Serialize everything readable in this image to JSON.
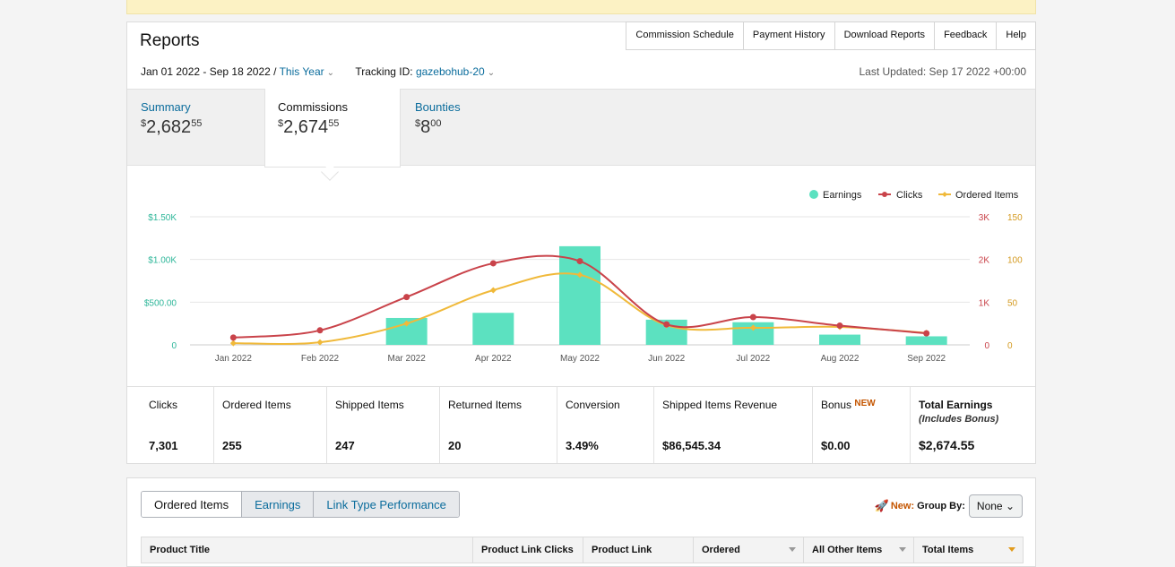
{
  "header": {
    "title": "Reports",
    "nav": [
      "Commission Schedule",
      "Payment History",
      "Download Reports",
      "Feedback",
      "Help"
    ],
    "date_range": "Jan 01 2022 - Sep 18 2022 /",
    "date_preset": "This Year",
    "tracking_label": "Tracking ID:",
    "tracking_id": "gazebohub-20",
    "last_updated": "Last Updated: Sep 17 2022 +00:00"
  },
  "summary_tabs": [
    {
      "label": "Summary",
      "currency": "$",
      "whole": "2,682",
      "cents": "55"
    },
    {
      "label": "Commissions",
      "currency": "$",
      "whole": "2,674",
      "cents": "55"
    },
    {
      "label": "Bounties",
      "currency": "$",
      "whole": "8",
      "cents": "00"
    }
  ],
  "chart_data": {
    "type": "bar+line",
    "categories": [
      "Jan 2022",
      "Feb 2022",
      "Mar 2022",
      "Apr 2022",
      "May 2022",
      "Jun 2022",
      "Jul 2022",
      "Aug 2022",
      "Sep 2022"
    ],
    "legend": [
      "Earnings",
      "Clicks",
      "Ordered Items"
    ],
    "series": [
      {
        "name": "Earnings",
        "axis": "left",
        "values": [
          0,
          0,
          315,
          375,
          1155,
          295,
          265,
          120,
          100
        ]
      },
      {
        "name": "Clicks",
        "axis": "right1",
        "values": [
          170,
          340,
          1120,
          1910,
          1960,
          480,
          650,
          450,
          270
        ]
      },
      {
        "name": "Ordered Items",
        "axis": "right2",
        "values": [
          2,
          3,
          25,
          64,
          82,
          23,
          20,
          21,
          14
        ]
      }
    ],
    "y_left": {
      "ticks": [
        "0",
        "$500.00",
        "$1.00K",
        "$1.50K"
      ],
      "range": [
        0,
        1500
      ]
    },
    "y_right1": {
      "ticks": [
        "0",
        "1K",
        "2K",
        "3K"
      ],
      "range": [
        0,
        3000
      ]
    },
    "y_right2": {
      "ticks": [
        "0",
        "50",
        "100",
        "150"
      ],
      "range": [
        0,
        150
      ]
    },
    "colors": {
      "earnings": "#5ce1c0",
      "clicks": "#c9434a",
      "ordered": "#f0b93a",
      "left_axis": "#2fb79a"
    },
    "grid": true,
    "legend_position": "top-right"
  },
  "stats": [
    {
      "label": "Clicks",
      "value": "7,301"
    },
    {
      "label": "Ordered Items",
      "value": "255"
    },
    {
      "label": "Shipped Items",
      "value": "247"
    },
    {
      "label": "Returned Items",
      "value": "20"
    },
    {
      "label": "Conversion",
      "value": "3.49%"
    },
    {
      "label": "Shipped Items Revenue",
      "value": "$86,545.34"
    },
    {
      "label": "Bonus",
      "badge": "NEW",
      "value": "$0.00"
    },
    {
      "label": "Total Earnings",
      "sub": "(Includes Bonus)",
      "value": "$2,674.55"
    }
  ],
  "table": {
    "tabs": [
      "Ordered Items",
      "Earnings",
      "Link Type Performance"
    ],
    "new_label": "New:",
    "group_by_label": "Group By:",
    "group_by_value": "None",
    "columns": [
      "Product Title",
      "Product Link Clicks",
      "Product Link",
      "Ordered",
      "All Other Items",
      "Total Items"
    ]
  }
}
